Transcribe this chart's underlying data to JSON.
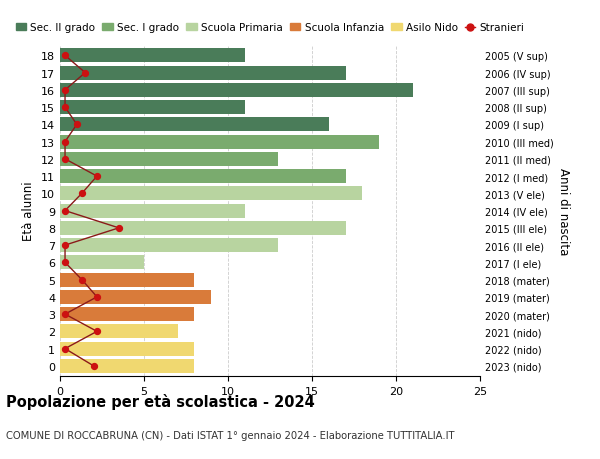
{
  "ages": [
    18,
    17,
    16,
    15,
    14,
    13,
    12,
    11,
    10,
    9,
    8,
    7,
    6,
    5,
    4,
    3,
    2,
    1,
    0
  ],
  "right_labels": [
    "2005 (V sup)",
    "2006 (IV sup)",
    "2007 (III sup)",
    "2008 (II sup)",
    "2009 (I sup)",
    "2010 (III med)",
    "2011 (II med)",
    "2012 (I med)",
    "2013 (V ele)",
    "2014 (IV ele)",
    "2015 (III ele)",
    "2016 (II ele)",
    "2017 (I ele)",
    "2018 (mater)",
    "2019 (mater)",
    "2020 (mater)",
    "2021 (nido)",
    "2022 (nido)",
    "2023 (nido)"
  ],
  "bar_values": [
    11,
    17,
    21,
    11,
    16,
    19,
    13,
    17,
    18,
    11,
    17,
    13,
    5,
    8,
    9,
    8,
    7,
    8,
    8
  ],
  "bar_colors": [
    "#4a7c59",
    "#4a7c59",
    "#4a7c59",
    "#4a7c59",
    "#4a7c59",
    "#7aab6e",
    "#7aab6e",
    "#7aab6e",
    "#b8d4a0",
    "#b8d4a0",
    "#b8d4a0",
    "#b8d4a0",
    "#b8d4a0",
    "#d97b3a",
    "#d97b3a",
    "#d97b3a",
    "#f0d870",
    "#f0d870",
    "#f0d870"
  ],
  "stranieri_x": [
    0.3,
    1.5,
    0.3,
    0.3,
    1.0,
    0.3,
    0.3,
    2.2,
    1.3,
    0.3,
    3.5,
    0.3,
    0.3,
    1.3,
    2.2,
    0.3,
    2.2,
    0.3,
    2.0
  ],
  "legend_labels": [
    "Sec. II grado",
    "Sec. I grado",
    "Scuola Primaria",
    "Scuola Infanzia",
    "Asilo Nido",
    "Stranieri"
  ],
  "legend_colors": [
    "#4a7c59",
    "#7aab6e",
    "#b8d4a0",
    "#d97b3a",
    "#f0d870",
    "#cc1111"
  ],
  "title": "Popolazione per età scolastica - 2024",
  "subtitle": "COMUNE DI ROCCABRUNA (CN) - Dati ISTAT 1° gennaio 2024 - Elaborazione TUTTITALIA.IT",
  "ylabel_left": "Età alunni",
  "ylabel_right": "Anni di nascita",
  "xlim": [
    0,
    25
  ],
  "background_color": "#ffffff",
  "grid_color": "#cccccc"
}
